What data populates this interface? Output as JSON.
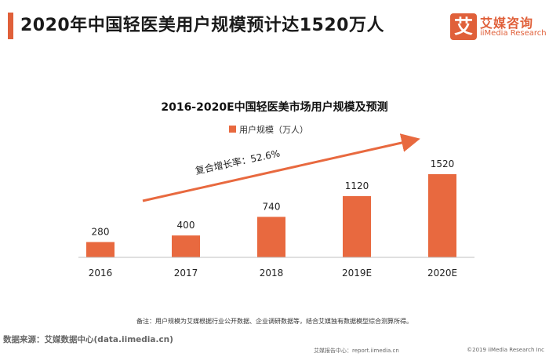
{
  "page": {
    "title": "2020年中国轻医美用户规模预计达1520万人"
  },
  "logo": {
    "mark": "艾",
    "name": "艾媒咨询",
    "sub": "iiMedia Research"
  },
  "colors": {
    "accent": "#e0603a",
    "bar": "#e8693f",
    "axis": "#bfbfbf"
  },
  "chart_data": {
    "type": "bar",
    "title": "2016-2020E中国轻医美市场用户规模及预测",
    "categories": [
      "2016",
      "2017",
      "2018",
      "2019E",
      "2020E"
    ],
    "series": [
      {
        "name": "用户规模（万人）",
        "values": [
          280,
          400,
          740,
          1120,
          1520
        ]
      }
    ],
    "data_labels": [
      "280",
      "400",
      "740",
      "1120",
      "1520"
    ],
    "legend_position": "top-center",
    "ylim": [
      0,
      1520
    ],
    "xlabel": "",
    "ylabel": "",
    "grid": false,
    "annotation": "复合增长率：52.6%"
  },
  "footer": {
    "note": "备注：用户规模为艾媒根据行业公开数据、企业调研数据等，结合艾媒独有数据模型综合测算所得。",
    "source": "数据来源：艾媒数据中心(data.iimedia.cn)",
    "report": "艾媒报告中心：report.iimedia.cn",
    "copyright": "©2019  iiMedia Research  Inc"
  }
}
